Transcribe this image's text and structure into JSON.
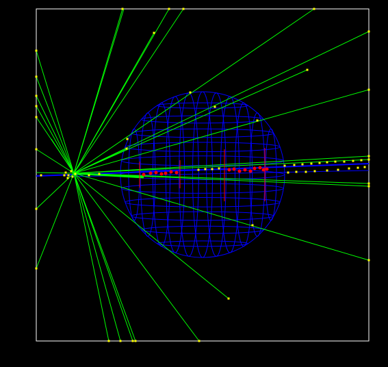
{
  "colors": {
    "background": "#000000",
    "frame": "#ffffff",
    "tracks": "#00ff00",
    "hits": "#ffff00",
    "detector_sphere": "#0000ff",
    "energy_deposits": "#ff0000",
    "beam_line": "#0000ff"
  },
  "scene": {
    "vertex_label": "",
    "frame_visible": true,
    "sphere_visible": true
  }
}
